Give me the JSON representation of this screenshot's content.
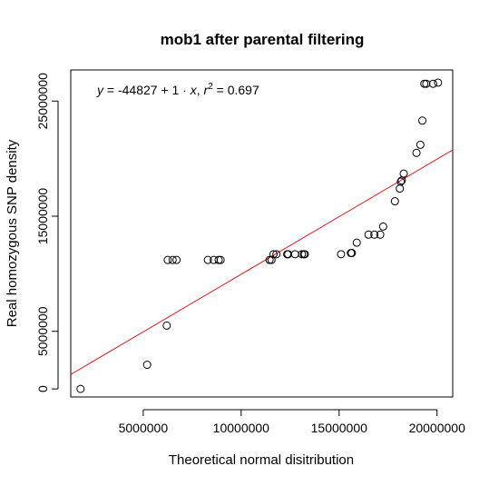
{
  "chart_data": {
    "type": "scatter",
    "title": "mob1 after parental filtering",
    "xlabel": "Theoretical normal disitribution",
    "ylabel": "Real homozygous SNP density",
    "xlim": [
      1300000,
      20800000
    ],
    "ylim": [
      -700000,
      27700000
    ],
    "x_ticks": [
      5000000,
      10000000,
      15000000,
      20000000
    ],
    "x_tick_labels": [
      "5000000",
      "10000000",
      "15000000",
      "20000000"
    ],
    "y_ticks": [
      0,
      5000000,
      15000000,
      25000000
    ],
    "y_tick_labels": [
      "0",
      "5000000",
      "15000000",
      "25000000"
    ],
    "annotation": {
      "y_var": "y",
      "eq_body": " = -44827 + 1 · ",
      "x_var": "x",
      "sep": ",  ",
      "r_var": "r",
      "r_exp": "2",
      "r_value": " = 0.697"
    },
    "fit": {
      "intercept": -44827,
      "slope": 1,
      "r2": 0.697,
      "color": "#e31a1c"
    },
    "points": [
      {
        "x": 1800000,
        "y": 0
      },
      {
        "x": 5200000,
        "y": 2100000
      },
      {
        "x": 6200000,
        "y": 5500000
      },
      {
        "x": 6250000,
        "y": 11200000
      },
      {
        "x": 6500000,
        "y": 11200000
      },
      {
        "x": 6700000,
        "y": 11200000
      },
      {
        "x": 8300000,
        "y": 11200000
      },
      {
        "x": 8600000,
        "y": 11200000
      },
      {
        "x": 8850000,
        "y": 11200000
      },
      {
        "x": 8950000,
        "y": 11200000
      },
      {
        "x": 11450000,
        "y": 11200000
      },
      {
        "x": 11550000,
        "y": 11200000
      },
      {
        "x": 11650000,
        "y": 11700000
      },
      {
        "x": 11800000,
        "y": 11700000
      },
      {
        "x": 12350000,
        "y": 11700000
      },
      {
        "x": 12400000,
        "y": 11700000
      },
      {
        "x": 12750000,
        "y": 11700000
      },
      {
        "x": 13100000,
        "y": 11700000
      },
      {
        "x": 13200000,
        "y": 11700000
      },
      {
        "x": 13250000,
        "y": 11700000
      },
      {
        "x": 15100000,
        "y": 11700000
      },
      {
        "x": 15600000,
        "y": 11800000
      },
      {
        "x": 15650000,
        "y": 11800000
      },
      {
        "x": 15900000,
        "y": 12700000
      },
      {
        "x": 16500000,
        "y": 13400000
      },
      {
        "x": 16800000,
        "y": 13400000
      },
      {
        "x": 17100000,
        "y": 13400000
      },
      {
        "x": 17250000,
        "y": 14100000
      },
      {
        "x": 17850000,
        "y": 16300000
      },
      {
        "x": 18100000,
        "y": 17400000
      },
      {
        "x": 18150000,
        "y": 18000000
      },
      {
        "x": 18200000,
        "y": 18100000
      },
      {
        "x": 18300000,
        "y": 18700000
      },
      {
        "x": 18950000,
        "y": 20500000
      },
      {
        "x": 19150000,
        "y": 21200000
      },
      {
        "x": 19250000,
        "y": 23300000
      },
      {
        "x": 19350000,
        "y": 26500000
      },
      {
        "x": 19450000,
        "y": 26500000
      },
      {
        "x": 19800000,
        "y": 26500000
      },
      {
        "x": 20050000,
        "y": 26600000
      }
    ]
  }
}
